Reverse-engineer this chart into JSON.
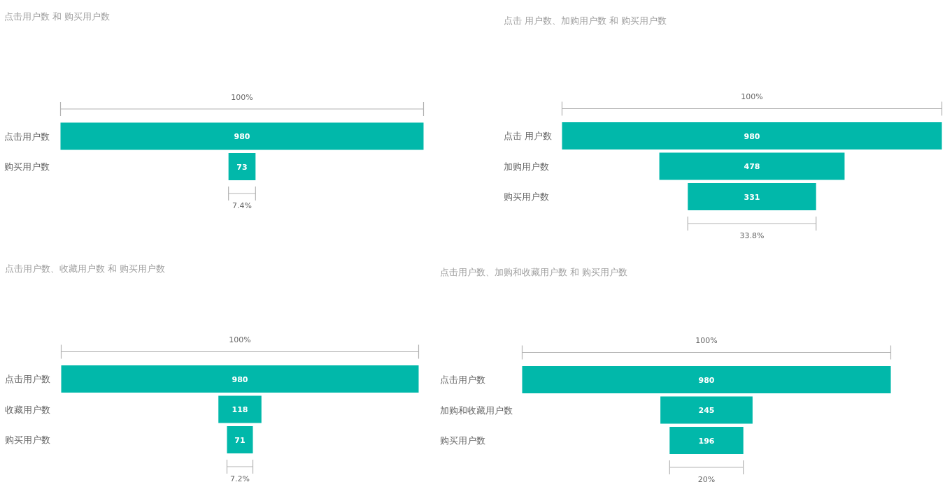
{
  "chart_data": [
    {
      "type": "other",
      "title": "点击用户数 和 购买用户数",
      "categories": [
        "点击用户数",
        "购买用户数"
      ],
      "values": [
        980,
        73
      ],
      "color": "#01b8aa",
      "data_labels": true,
      "annotations": [
        "100%",
        "7.4%"
      ]
    },
    {
      "type": "other",
      "title": "点击 用户数、加购用户数 和 购买用户数",
      "categories": [
        "点击 用户数",
        "加购用户数",
        "购买用户数"
      ],
      "values": [
        980,
        478,
        331
      ],
      "color": "#01b8aa",
      "data_labels": true,
      "annotations": [
        "100%",
        "33.8%"
      ]
    },
    {
      "type": "other",
      "title": "点击用户数、收藏用户数 和 购买用户数",
      "categories": [
        "点击用户数",
        "收藏用户数",
        "购买用户数"
      ],
      "values": [
        980,
        118,
        71
      ],
      "color": "#01b8aa",
      "data_labels": true,
      "annotations": [
        "100%",
        "7.2%"
      ]
    },
    {
      "type": "other",
      "title": "点击用户数、加购和收藏用户数 和 购买用户数",
      "categories": [
        "点击用户数",
        "加购和收藏用户数",
        "购买用户数"
      ],
      "values": [
        980,
        245,
        196
      ],
      "color": "#01b8aa",
      "data_labels": true,
      "annotations": [
        "100%",
        "20%"
      ]
    }
  ]
}
